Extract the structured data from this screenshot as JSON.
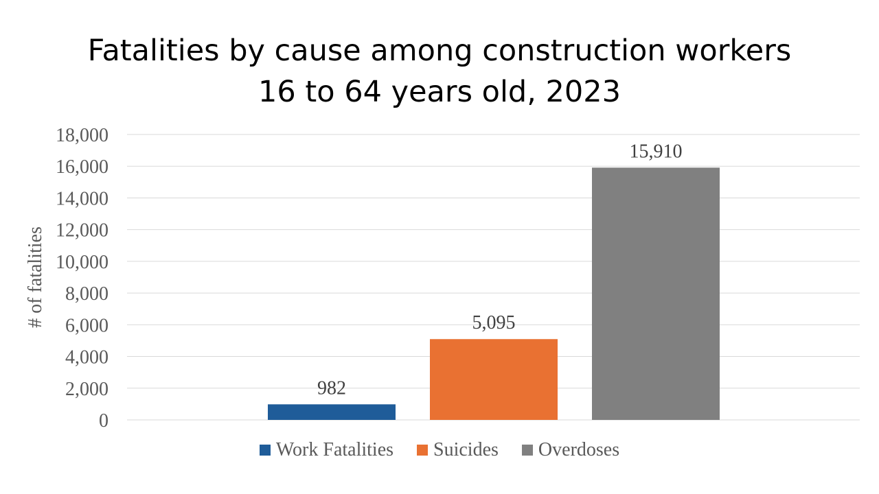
{
  "chart_data": {
    "type": "bar",
    "title_line1": "Fatalities by cause among construction workers",
    "title_line2": "16 to 64 years old, 2023",
    "xlabel": "",
    "ylabel": "# of fatalities",
    "ylim": [
      0,
      18000
    ],
    "y_ticks": [
      "0",
      "2,000",
      "4,000",
      "6,000",
      "8,000",
      "10,000",
      "12,000",
      "14,000",
      "16,000",
      "18,000"
    ],
    "grid": true,
    "legend_position": "bottom",
    "series": [
      {
        "name": "Work Fatalities",
        "value": 982,
        "label": "982",
        "color": "#1F5C99"
      },
      {
        "name": "Suicides",
        "value": 5095,
        "label": "5,095",
        "color": "#E97132"
      },
      {
        "name": "Overdoses",
        "value": 15910,
        "label": "15,910",
        "color": "#808080"
      }
    ]
  }
}
